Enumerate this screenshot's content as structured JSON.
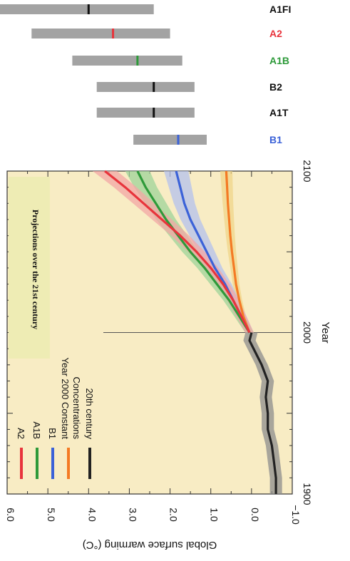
{
  "chart_data": {
    "type": "line",
    "orientation": "rotated-90-clockwise",
    "xlabel": "Year",
    "ylabel": "Global surface warming (°C)",
    "xlim": [
      1900,
      2100
    ],
    "ylim": [
      -1.0,
      6.0
    ],
    "x_ticks": [
      "1900",
      "2000",
      "2100"
    ],
    "y_ticks": [
      "−1.0",
      "0.0",
      "1.0",
      "2.0",
      "3.0",
      "4.0",
      "5.0",
      "6.0"
    ],
    "annotation": "Projections over the 21st century",
    "colors": {
      "A2": "#e8343c",
      "A1B": "#2e9a3a",
      "B1": "#3b62d8",
      "Commit": "#f47a24",
      "20th": "#222222",
      "plot_bg": "#f8ecc4",
      "gray_bar": "#a3a3a3"
    },
    "legend": [
      {
        "key": "A2",
        "label": "A2"
      },
      {
        "key": "A1B",
        "label": "A1B"
      },
      {
        "key": "B1",
        "label": "B1"
      },
      {
        "key": "Commit",
        "label": "Year 2000 Constant Concentrations"
      },
      {
        "key": "20th",
        "label": "20th century"
      }
    ],
    "series": [
      {
        "name": "20th century",
        "key": "20th",
        "x": [
          1900,
          1910,
          1920,
          1930,
          1940,
          1950,
          1960,
          1970,
          1980,
          1990,
          1995,
          2000
        ],
        "y": [
          -0.6,
          -0.6,
          -0.55,
          -0.5,
          -0.4,
          -0.4,
          -0.35,
          -0.4,
          -0.25,
          -0.05,
          0.05,
          0.0
        ],
        "spread": 0.15
      },
      {
        "name": "A2",
        "key": "A2",
        "x": [
          2000,
          2010,
          2020,
          2030,
          2040,
          2050,
          2060,
          2070,
          2080,
          2090,
          2100
        ],
        "y": [
          0.05,
          0.25,
          0.45,
          0.7,
          1.0,
          1.35,
          1.75,
          2.2,
          2.65,
          3.1,
          3.6
        ],
        "spread": 0.3
      },
      {
        "name": "A1B",
        "key": "A1B",
        "x": [
          2000,
          2010,
          2020,
          2030,
          2040,
          2050,
          2060,
          2070,
          2080,
          2090,
          2100
        ],
        "y": [
          0.05,
          0.3,
          0.55,
          0.85,
          1.15,
          1.5,
          1.8,
          2.1,
          2.35,
          2.6,
          2.8
        ],
        "spread": 0.3
      },
      {
        "name": "B1",
        "key": "B1",
        "x": [
          2000,
          2010,
          2020,
          2030,
          2040,
          2050,
          2060,
          2070,
          2080,
          2090,
          2100
        ],
        "y": [
          0.05,
          0.25,
          0.45,
          0.65,
          0.9,
          1.1,
          1.3,
          1.5,
          1.65,
          1.75,
          1.85
        ],
        "spread": 0.3
      },
      {
        "name": "Year 2000 Constant Concentrations",
        "key": "Commit",
        "x": [
          2000,
          2010,
          2020,
          2030,
          2040,
          2050,
          2060,
          2070,
          2080,
          2090,
          2100
        ],
        "y": [
          0.05,
          0.2,
          0.3,
          0.38,
          0.43,
          0.48,
          0.52,
          0.55,
          0.58,
          0.6,
          0.62
        ],
        "spread": 0.15
      }
    ],
    "scenario_ranges": [
      {
        "label": "A1FI",
        "key": "20th",
        "low": 2.4,
        "high": 6.4,
        "best": 4.0
      },
      {
        "label": "A2",
        "key": "A2",
        "low": 2.0,
        "high": 5.4,
        "best": 3.4
      },
      {
        "label": "A1B",
        "key": "A1B",
        "low": 1.7,
        "high": 4.4,
        "best": 2.8
      },
      {
        "label": "B2",
        "key": "20th",
        "low": 1.4,
        "high": 3.8,
        "best": 2.4
      },
      {
        "label": "A1T",
        "key": "20th",
        "low": 1.4,
        "high": 3.8,
        "best": 2.4
      },
      {
        "label": "B1",
        "key": "B1",
        "low": 1.1,
        "high": 2.9,
        "best": 1.8
      }
    ]
  }
}
